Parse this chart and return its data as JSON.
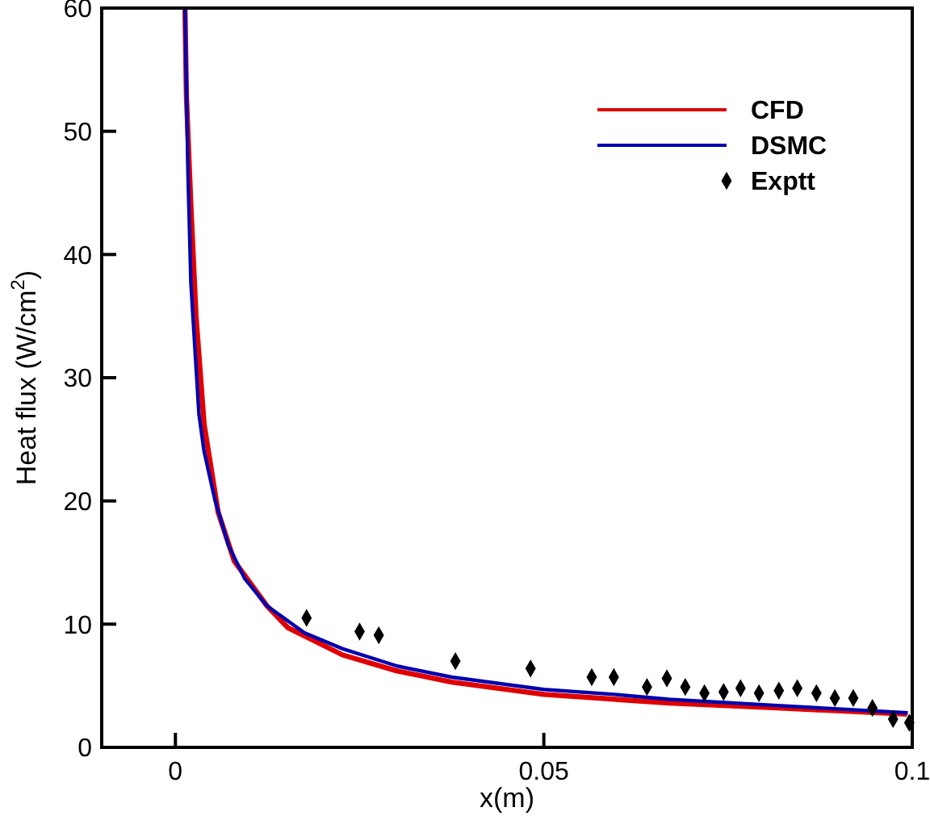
{
  "chart_data": {
    "type": "line",
    "xlabel": "x(m)",
    "ylabel": "Heat flux (W/cm$^{2}$)",
    "xlim": [
      -0.01,
      0.1
    ],
    "ylim": [
      0,
      60
    ],
    "xticks": [
      0,
      0.05,
      0.1
    ],
    "yticks": [
      0,
      10,
      20,
      30,
      40,
      50,
      60
    ],
    "grid": false,
    "legend": "top right",
    "line_style": "solid",
    "series": [
      {
        "name": "CFD",
        "color": "#e00000",
        "x": [
          0.0013,
          0.0015,
          0.0021,
          0.0028,
          0.0039,
          0.0058,
          0.008,
          0.0124,
          0.0153,
          0.0227,
          0.0301,
          0.0375,
          0.05,
          0.067,
          0.0817,
          0.0993
        ],
        "values": [
          60,
          52.8,
          44,
          35,
          26.2,
          19.1,
          15.1,
          11.5,
          9.7,
          7.5,
          6.2,
          5.3,
          4.3,
          3.6,
          3.2,
          2.7
        ]
      },
      {
        "name": "DSMC",
        "color": "#0000b0",
        "x": [
          0.0013,
          0.0017,
          0.0021,
          0.0032,
          0.0039,
          0.0054,
          0.0072,
          0.0094,
          0.0124,
          0.0175,
          0.0227,
          0.0301,
          0.0375,
          0.05,
          0.0596,
          0.067,
          0.0817,
          0.0994
        ],
        "values": [
          60,
          46.7,
          37.7,
          27,
          24,
          20,
          16.4,
          13.7,
          11.5,
          9.3,
          8.0,
          6.6,
          5.7,
          4.7,
          4.3,
          3.9,
          3.4,
          2.8
        ]
      },
      {
        "name": "Exptt",
        "type": "scatter",
        "marker": "diamond",
        "color": "#000000",
        "x": [
          0.0178,
          0.025,
          0.0276,
          0.038,
          0.0482,
          0.0565,
          0.0595,
          0.064,
          0.0667,
          0.0692,
          0.0718,
          0.0744,
          0.0767,
          0.0792,
          0.0819,
          0.0844,
          0.087,
          0.0895,
          0.092,
          0.0946,
          0.0974,
          0.0996
        ],
        "values": [
          10.5,
          9.4,
          9.1,
          7.0,
          6.4,
          5.7,
          5.7,
          4.9,
          5.6,
          4.9,
          4.4,
          4.5,
          4.8,
          4.4,
          4.6,
          4.8,
          4.4,
          4.0,
          4.0,
          3.2,
          2.3,
          2.0
        ]
      }
    ]
  }
}
